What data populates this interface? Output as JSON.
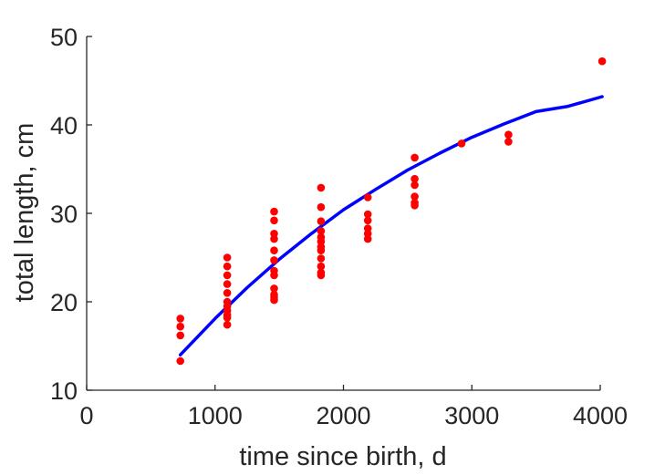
{
  "chart_data": {
    "type": "scatter",
    "title": "",
    "xlabel": "time since birth, d",
    "ylabel": "total length, cm",
    "xlim": [
      0,
      4000
    ],
    "ylim": [
      10,
      50
    ],
    "xticks": [
      "0",
      "1000",
      "2000",
      "3000",
      "4000"
    ],
    "yticks": [
      "10",
      "20",
      "30",
      "40",
      "50"
    ],
    "grid": false,
    "legend": "none",
    "colors": {
      "points": "#ff0000",
      "fit": "#0000ff",
      "axes": "#262626"
    },
    "series": [
      {
        "kind": "scatter",
        "x": [
          730,
          730,
          730,
          730,
          1095,
          1095,
          1095,
          1095,
          1095,
          1095,
          1095,
          1095,
          1095,
          1095,
          1095,
          1460,
          1460,
          1460,
          1460,
          1460,
          1460,
          1460,
          1460,
          1460,
          1460,
          1460,
          1460,
          1825,
          1825,
          1825,
          1825,
          1825,
          1825,
          1825,
          1825,
          1825,
          1825,
          1825,
          1825,
          2190,
          2190,
          2190,
          2190,
          2190,
          2190,
          2555,
          2555,
          2555,
          2555,
          2555,
          2555,
          2920,
          3285,
          3285,
          4015
        ],
        "y": [
          18.1,
          17.2,
          16.2,
          13.3,
          25.0,
          24.0,
          23.0,
          22.0,
          21.0,
          20.0,
          19.5,
          19.0,
          18.5,
          18.2,
          17.4,
          30.2,
          29.2,
          27.7,
          27.1,
          25.8,
          24.7,
          23.5,
          23.0,
          21.5,
          20.8,
          20.5,
          20.2,
          32.9,
          30.7,
          29.1,
          28.0,
          27.3,
          26.8,
          26.2,
          25.8,
          24.9,
          24.0,
          23.3,
          23.0,
          31.8,
          29.9,
          29.2,
          28.3,
          27.7,
          27.1,
          36.3,
          33.9,
          33.2,
          31.9,
          31.2,
          30.9,
          37.9,
          38.9,
          38.1,
          47.2
        ]
      },
      {
        "kind": "line",
        "x": [
          730,
          1000,
          1250,
          1500,
          1750,
          2000,
          2250,
          2500,
          2750,
          3000,
          3250,
          3500,
          3750,
          4015
        ],
        "y": [
          14.0,
          18.1,
          21.6,
          24.8,
          27.7,
          30.4,
          32.7,
          34.9,
          36.8,
          38.6,
          40.1,
          41.5,
          42.1,
          43.2
        ]
      }
    ]
  }
}
